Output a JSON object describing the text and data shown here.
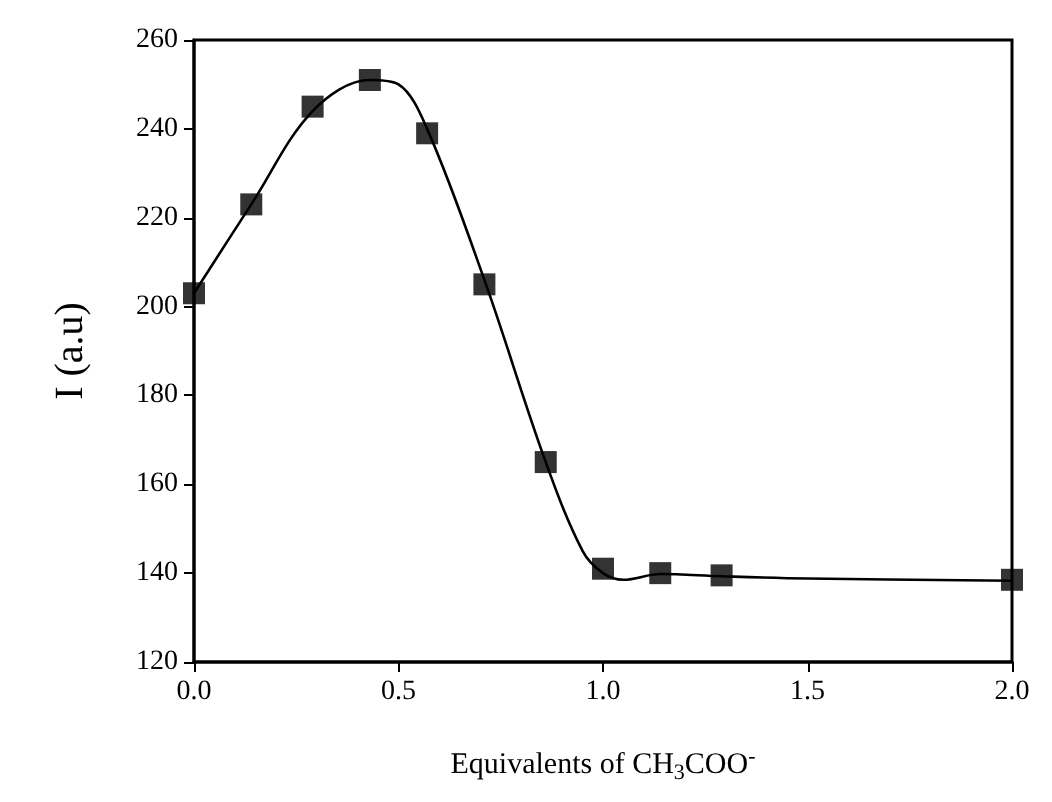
{
  "chart_data": {
    "type": "scatter",
    "xlabel": "Equivalents of CH$_{3}$COO$^{-}$",
    "ylabel": "I (a.u)",
    "xlim": [
      0,
      2
    ],
    "xticks": [
      {
        "value": 0,
        "label": "0.0"
      },
      {
        "value": 0.5,
        "label": "0.5"
      },
      {
        "value": 1,
        "label": "1.0"
      },
      {
        "value": 1.5,
        "label": "1.5"
      },
      {
        "value": 2,
        "label": "2.0"
      }
    ],
    "ylim": [
      120,
      260
    ],
    "yticks": [
      120,
      140,
      160,
      180,
      200,
      220,
      240,
      260
    ],
    "grid": false,
    "marker": "square",
    "series": [
      {
        "type": "line",
        "color": "#000000",
        "line_style": "solid",
        "marker": "none",
        "x": [
          0,
          0.14,
          0.29,
          0.43,
          0.5,
          0.57,
          0.71,
          0.86,
          0.95,
          1.0,
          1.05,
          1.14,
          1.29,
          1.5,
          2.0
        ],
        "values": [
          203,
          223,
          244,
          251,
          250,
          240,
          206,
          165,
          145,
          140,
          138.5,
          139.8,
          139.3,
          138.8,
          138.3
        ]
      },
      {
        "color": "#000000",
        "x": [
          0,
          0.14,
          0.29,
          0.43,
          0.57,
          0.71,
          0.86,
          1.0,
          1.14,
          1.29,
          2.0
        ],
        "values": [
          203,
          223,
          245,
          251,
          239,
          205,
          165,
          141,
          140,
          139.5,
          138.5
        ]
      }
    ]
  }
}
